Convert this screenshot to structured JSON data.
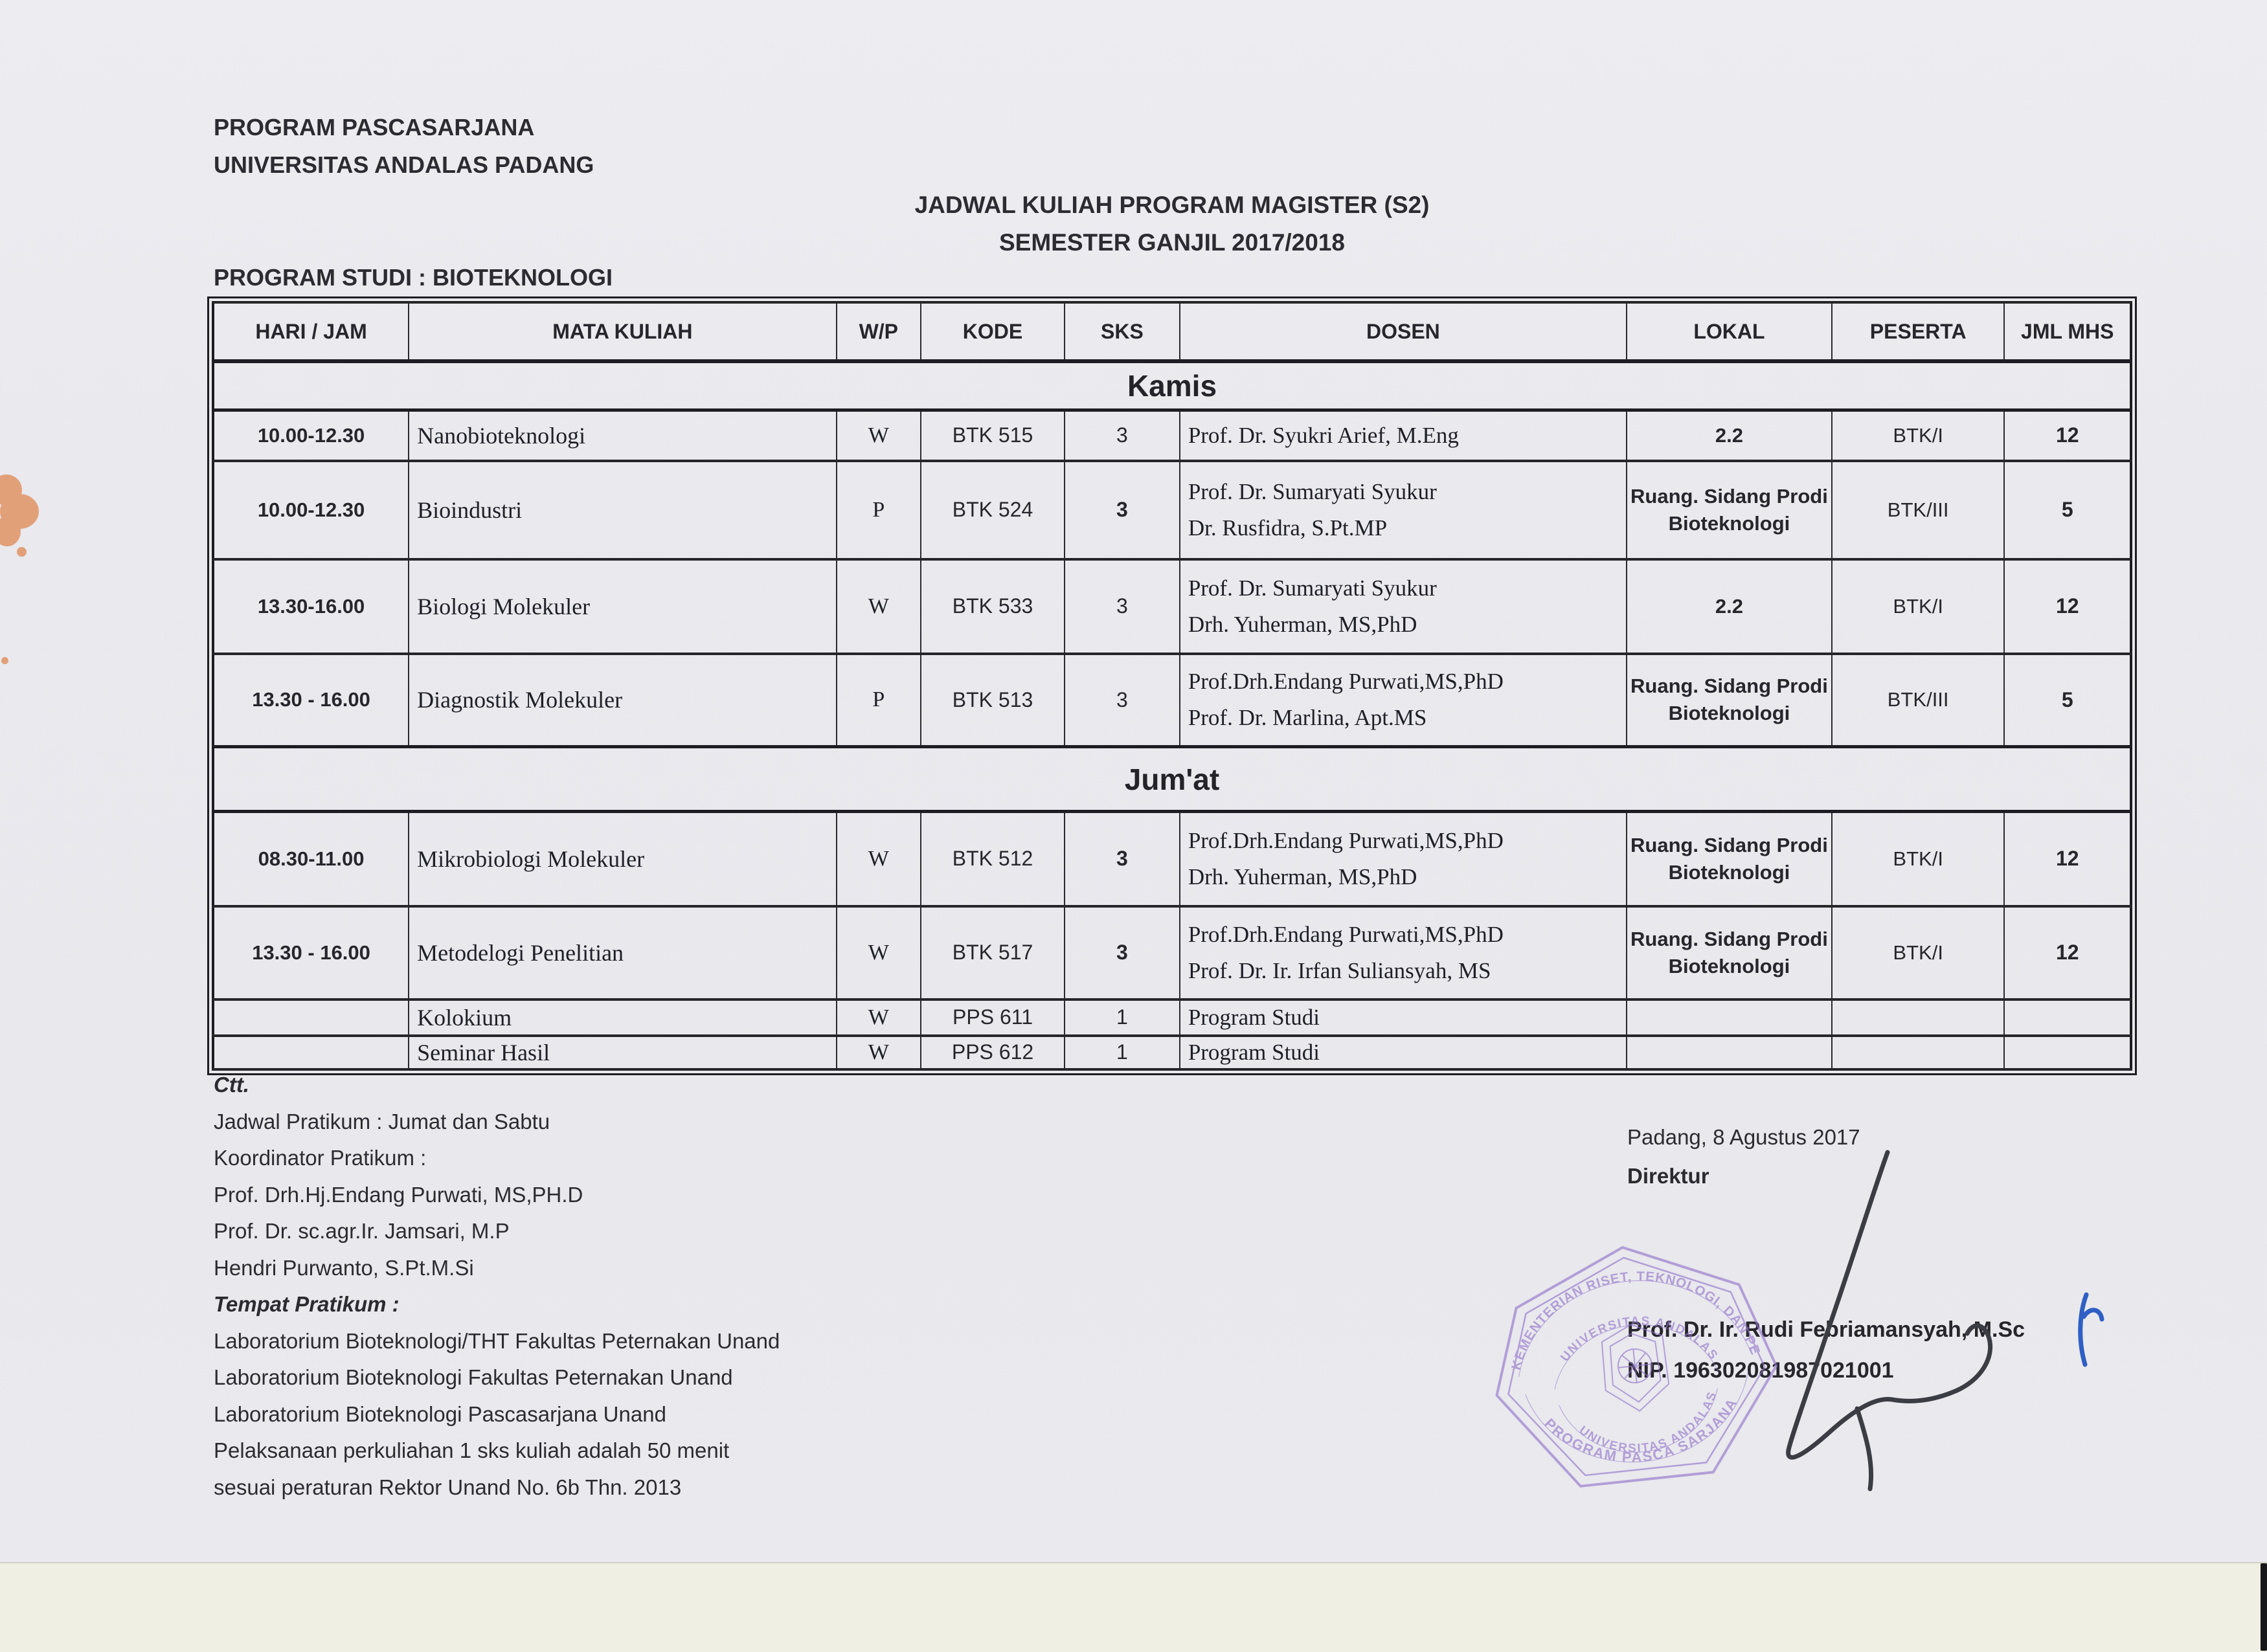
{
  "colors": {
    "paper": "#e9e9ee",
    "table_line": "#26262a",
    "text": "#2b2b31",
    "stamp_purple": "#8f72c9",
    "pen_blue": "#2f5fc4",
    "stain_orange": "#e2a078",
    "bottom_strip": "#f0efe3"
  },
  "header": {
    "org_line1": "PROGRAM PASCASARJANA",
    "org_line2": "UNIVERSITAS ANDALAS PADANG",
    "title_line1": "JADWAL KULIAH PROGRAM MAGISTER (S2)",
    "title_line2": "SEMESTER GANJIL 2017/2018",
    "program": "PROGRAM STUDI : BIOTEKNOLOGI"
  },
  "table": {
    "columns": [
      "HARI / JAM",
      "MATA KULIAH",
      "W/P",
      "KODE",
      "SKS",
      "DOSEN",
      "LOKAL",
      "PESERTA",
      "JML MHS"
    ],
    "sections": [
      {
        "day": "Kamis",
        "rows": [
          {
            "time": "10.00-12.30",
            "course": "Nanobioteknologi",
            "wp": "W",
            "code": "BTK 515",
            "sks": "3",
            "sks_bold": false,
            "dosen": [
              "Prof. Dr. Syukri Arief,  M.Eng"
            ],
            "lokal": "2.2",
            "peserta": "BTK/I",
            "jml": "12"
          },
          {
            "time": "10.00-12.30",
            "course": "Bioindustri",
            "wp": "P",
            "code": "BTK 524",
            "sks": "3",
            "sks_bold": true,
            "dosen": [
              "Prof. Dr. Sumaryati Syukur",
              "Dr. Rusfidra, S.Pt.MP"
            ],
            "lokal": "Ruang. Sidang Prodi Bioteknologi",
            "peserta": "BTK/III",
            "jml": "5"
          },
          {
            "time": "13.30-16.00",
            "course": "Biologi Molekuler",
            "wp": "W",
            "code": "BTK 533",
            "sks": "3",
            "sks_bold": false,
            "dosen": [
              "Prof. Dr. Sumaryati Syukur",
              "Drh. Yuherman, MS,PhD"
            ],
            "lokal": "2.2",
            "peserta": "BTK/I",
            "jml": "12"
          },
          {
            "time": "13.30 - 16.00",
            "course": "Diagnostik Molekuler",
            "wp": "P",
            "code": "BTK 513",
            "sks": "3",
            "sks_bold": false,
            "dosen": [
              "Prof.Drh.Endang Purwati,MS,PhD",
              "Prof. Dr. Marlina, Apt.MS"
            ],
            "lokal": "Ruang. Sidang Prodi Bioteknologi",
            "peserta": "BTK/III",
            "jml": "5"
          }
        ]
      },
      {
        "day": "Jum'at",
        "rows": [
          {
            "time": "08.30-11.00",
            "course": "Mikrobiologi Molekuler",
            "wp": "W",
            "code": "BTK 512",
            "sks": "3",
            "sks_bold": true,
            "dosen": [
              "Prof.Drh.Endang Purwati,MS,PhD",
              "Drh. Yuherman, MS,PhD"
            ],
            "lokal": "Ruang. Sidang Prodi Bioteknologi",
            "peserta": "BTK/I",
            "jml": "12"
          },
          {
            "time": "13.30 - 16.00",
            "course": "Metodelogi Penelitian",
            "wp": "W",
            "code": "BTK 517",
            "sks": "3",
            "sks_bold": true,
            "dosen": [
              "Prof.Drh.Endang Purwati,MS,PhD",
              "Prof. Dr. Ir. Irfan  Suliansyah, MS"
            ],
            "lokal": "Ruang. Sidang Prodi Bioteknologi",
            "peserta": "BTK/I",
            "jml": "12"
          },
          {
            "time": "",
            "course": "Kolokium",
            "wp": "W",
            "code": "PPS 611",
            "sks": "1",
            "sks_bold": false,
            "dosen": [
              "Program Studi"
            ],
            "lokal": "",
            "peserta": "",
            "jml": ""
          },
          {
            "time": "",
            "course": "Seminar Hasil",
            "wp": "W",
            "code": "PPS 612",
            "sks": "1",
            "sks_bold": false,
            "dosen": [
              "Program Studi"
            ],
            "lokal": "",
            "peserta": "",
            "jml": ""
          }
        ]
      }
    ]
  },
  "notes": {
    "lines": [
      {
        "t": "Ctt.",
        "em": true
      },
      {
        "t": "Jadwal Pratikum : Jumat dan Sabtu"
      },
      {
        "t": "Koordinator Pratikum :"
      },
      {
        "t": "Prof. Drh.Hj.Endang Purwati, MS,PH.D"
      },
      {
        "t": "Prof. Dr. sc.agr.Ir. Jamsari, M.P"
      },
      {
        "t": "Hendri Purwanto, S.Pt.M.Si"
      },
      {
        "t": "Tempat Pratikum :",
        "em": true
      },
      {
        "t": "Laboratorium Bioteknologi/THT Fakultas Peternakan Unand"
      },
      {
        "t": "Laboratorium Bioteknologi Fakultas Peternakan Unand"
      },
      {
        "t": "Laboratorium Bioteknologi Pascasarjana  Unand"
      },
      {
        "t": "Pelaksanaan  perkuliahan 1 sks kuliah adalah 50 menit"
      },
      {
        "t": "sesuai peraturan Rektor Unand No. 6b Thn. 2013"
      }
    ]
  },
  "sign": {
    "place_date": "Padang,    8  Agustus 2017",
    "role": "Direktur",
    "name": "Prof. Dr. Ir. Rudi Febriamansyah, M.Sc",
    "nip": "NIP. 196302081987021001"
  },
  "stamp": {
    "arc_top": "KEMENTERIAN RISET, TEKNOLOGI, DAN PENDIDIKAN TINGGI",
    "arc_top2": "UNIVERSITAS ANDALAS",
    "arc_bottom": "PROGRAM PASCA SARJANA",
    "arc_bottom2": "UNIVERSITAS ANDALAS"
  }
}
